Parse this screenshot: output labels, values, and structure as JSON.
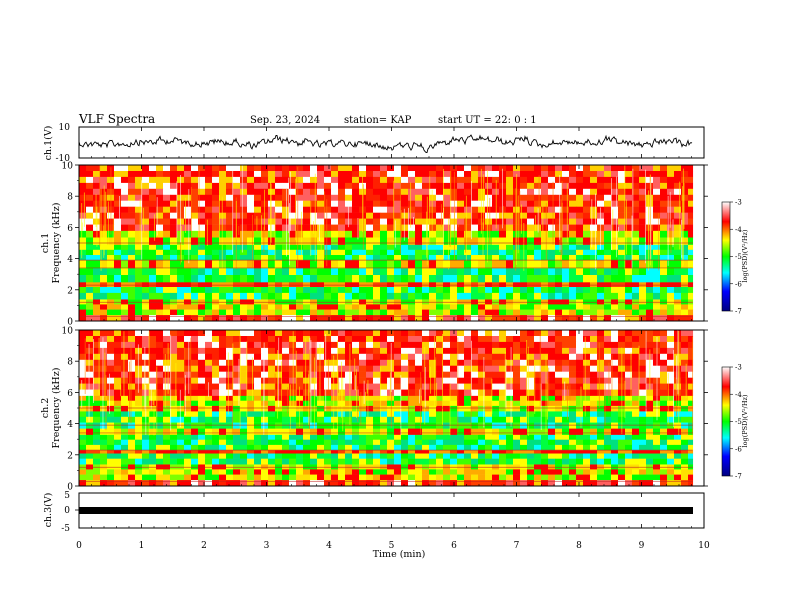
{
  "header": {
    "title": "VLF Spectra",
    "date": "Sep. 23, 2024",
    "station": "station= KAP",
    "start_ut": "start  UT  =  22: 0  : 1"
  },
  "chart_data": [
    {
      "type": "line",
      "title": "ch.1 waveform",
      "ylabel": "ch.1(V)",
      "ylim": [
        -10,
        10
      ],
      "ytick_labels": [
        "10",
        "-10"
      ],
      "x_range_min": [
        0,
        9.82
      ],
      "series": [
        {
          "name": "ch.1",
          "mean": 0,
          "amplitude_typical": 4
        }
      ]
    },
    {
      "type": "heatmap",
      "title": "ch.1 spectrogram",
      "ylabel": "ch.1 Frequency (kHz)",
      "ylabel_parts": [
        "ch.1",
        "Frequency (kHz)"
      ],
      "ylim": [
        0,
        10
      ],
      "ytick_labels": [
        "0",
        "2",
        "4",
        "6",
        "8",
        "10"
      ],
      "x_range_min": [
        0,
        9.82
      ],
      "bands_khz": [
        {
          "from": 0,
          "to": 0.4,
          "level": "high"
        },
        {
          "from": 0.4,
          "to": 1.4,
          "level": "medium"
        },
        {
          "from": 1.4,
          "to": 2.2,
          "level": "low"
        },
        {
          "from": 2.2,
          "to": 2.5,
          "level": "line"
        },
        {
          "from": 2.5,
          "to": 3.4,
          "level": "low"
        },
        {
          "from": 3.4,
          "to": 3.9,
          "level": "medium"
        },
        {
          "from": 3.9,
          "to": 4.9,
          "level": "low"
        },
        {
          "from": 4.9,
          "to": 5.8,
          "level": "medium"
        },
        {
          "from": 5.8,
          "to": 10,
          "level": "high"
        }
      ]
    },
    {
      "type": "heatmap",
      "title": "ch.2 spectrogram",
      "ylabel": "ch.2 Frequency (kHz)",
      "ylabel_parts": [
        "ch.2",
        "Frequency (kHz)"
      ],
      "ylim": [
        0,
        10
      ],
      "ytick_labels": [
        "0",
        "2",
        "4",
        "6",
        "8",
        "10"
      ],
      "x_range_min": [
        0,
        9.82
      ],
      "bands_khz": [
        {
          "from": 0,
          "to": 0.4,
          "level": "high"
        },
        {
          "from": 0.4,
          "to": 1.4,
          "level": "medium"
        },
        {
          "from": 1.4,
          "to": 2.1,
          "level": "low"
        },
        {
          "from": 2.1,
          "to": 2.3,
          "level": "line"
        },
        {
          "from": 2.3,
          "to": 3.3,
          "level": "low"
        },
        {
          "from": 3.3,
          "to": 3.7,
          "level": "medium"
        },
        {
          "from": 3.7,
          "to": 4.8,
          "level": "low"
        },
        {
          "from": 4.8,
          "to": 5.8,
          "level": "medium"
        },
        {
          "from": 5.8,
          "to": 10,
          "level": "high"
        }
      ]
    },
    {
      "type": "line",
      "title": "ch.3 waveform",
      "ylabel": "ch.3(V)",
      "ylim": [
        -5,
        5
      ],
      "ytick_labels": [
        "5",
        "0",
        "-5"
      ],
      "x_range_min": [
        0,
        9.82
      ],
      "series": [
        {
          "name": "ch.3",
          "mean": 0,
          "amplitude_typical": 0.35
        }
      ]
    }
  ],
  "x_axis": {
    "xlabel": "Time  (min)",
    "xlim": [
      0,
      10
    ],
    "tick_labels": [
      "0",
      "1",
      "2",
      "3",
      "4",
      "5",
      "6",
      "7",
      "8",
      "9",
      "10"
    ]
  },
  "colorbar": {
    "label": "log(PSD)(V²/Hz)",
    "range": [
      -7,
      -3
    ],
    "tick_labels": [
      "-3",
      "-4",
      "-5",
      "-6",
      "-7"
    ],
    "colors": [
      "#000080",
      "#0000ff",
      "#00ffff",
      "#00ff00",
      "#ffff00",
      "#ff0000",
      "#ffffff"
    ]
  }
}
